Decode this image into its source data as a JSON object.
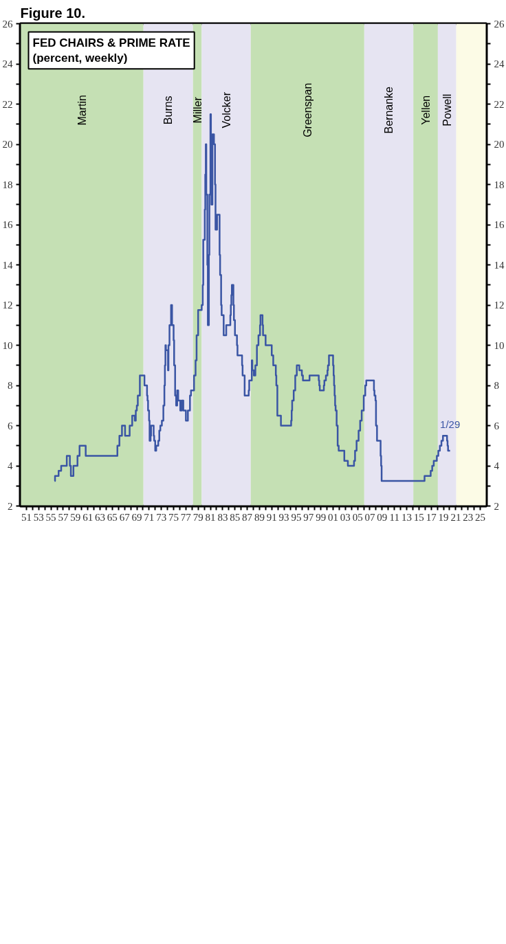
{
  "chart_data": {
    "type": "step",
    "title": "FED CHAIRS & PRIME RATE",
    "subtitle": "(percent, weekly)",
    "annotations": [
      "Figure 10.",
      {
        "text": "1/29",
        "x": "2020-01-29",
        "y": 4.75
      }
    ],
    "xlim": [
      "1950",
      "2026"
    ],
    "xticks": [
      {
        "value": "1951",
        "label": "51"
      },
      {
        "value": "1952",
        "label": null
      },
      {
        "value": "1953",
        "label": "53"
      },
      {
        "value": "1954",
        "label": null
      },
      {
        "value": "1955",
        "label": "55"
      },
      {
        "value": "1956",
        "label": null
      },
      {
        "value": "1957",
        "label": "57"
      },
      {
        "value": "1958",
        "label": null
      },
      {
        "value": "1959",
        "label": "59"
      },
      {
        "value": "1960",
        "label": null
      },
      {
        "value": "1961",
        "label": "61"
      },
      {
        "value": "1962",
        "label": null
      },
      {
        "value": "1963",
        "label": "63"
      },
      {
        "value": "1964",
        "label": null
      },
      {
        "value": "1965",
        "label": "65"
      },
      {
        "value": "1966",
        "label": null
      },
      {
        "value": "1967",
        "label": "67"
      },
      {
        "value": "1968",
        "label": null
      },
      {
        "value": "1969",
        "label": "69"
      },
      {
        "value": "1970",
        "label": null
      },
      {
        "value": "1971",
        "label": "71"
      },
      {
        "value": "1972",
        "label": null
      },
      {
        "value": "1973",
        "label": "73"
      },
      {
        "value": "1974",
        "label": null
      },
      {
        "value": "1975",
        "label": "75"
      },
      {
        "value": "1976",
        "label": null
      },
      {
        "value": "1977",
        "label": "77"
      },
      {
        "value": "1978",
        "label": null
      },
      {
        "value": "1979",
        "label": "79"
      },
      {
        "value": "1980",
        "label": null
      },
      {
        "value": "1981",
        "label": "81"
      },
      {
        "value": "1982",
        "label": null
      },
      {
        "value": "1983",
        "label": "83"
      },
      {
        "value": "1984",
        "label": null
      },
      {
        "value": "1985",
        "label": "85"
      },
      {
        "value": "1986",
        "label": null
      },
      {
        "value": "1987",
        "label": "87"
      },
      {
        "value": "1988",
        "label": null
      },
      {
        "value": "1989",
        "label": "89"
      },
      {
        "value": "1990",
        "label": null
      },
      {
        "value": "1991",
        "label": "91"
      },
      {
        "value": "1992",
        "label": null
      },
      {
        "value": "1993",
        "label": "93"
      },
      {
        "value": "1994",
        "label": null
      },
      {
        "value": "1995",
        "label": "95"
      },
      {
        "value": "1996",
        "label": null
      },
      {
        "value": "1997",
        "label": "97"
      },
      {
        "value": "1998",
        "label": null
      },
      {
        "value": "1999",
        "label": "99"
      },
      {
        "value": "2000",
        "label": null
      },
      {
        "value": "2001",
        "label": "01"
      },
      {
        "value": "2002",
        "label": null
      },
      {
        "value": "2003",
        "label": "03"
      },
      {
        "value": "2004",
        "label": null
      },
      {
        "value": "2005",
        "label": "05"
      },
      {
        "value": "2006",
        "label": null
      },
      {
        "value": "2007",
        "label": "07"
      },
      {
        "value": "2008",
        "label": null
      },
      {
        "value": "2009",
        "label": "09"
      },
      {
        "value": "2010",
        "label": null
      },
      {
        "value": "2011",
        "label": "11"
      },
      {
        "value": "2012",
        "label": null
      },
      {
        "value": "2013",
        "label": "13"
      },
      {
        "value": "2014",
        "label": null
      },
      {
        "value": "2015",
        "label": "15"
      },
      {
        "value": "2016",
        "label": null
      },
      {
        "value": "2017",
        "label": "17"
      },
      {
        "value": "2018",
        "label": null
      },
      {
        "value": "2019",
        "label": "19"
      },
      {
        "value": "2020",
        "label": null
      },
      {
        "value": "2021",
        "label": "21"
      },
      {
        "value": "2022",
        "label": null
      },
      {
        "value": "2023",
        "label": "23"
      },
      {
        "value": "2024",
        "label": null
      },
      {
        "value": "2025",
        "label": "25"
      }
    ],
    "ylim": [
      2,
      26
    ],
    "yticks": [
      2,
      {
        "value": 3,
        "label": null
      },
      4,
      {
        "value": 5,
        "label": null
      },
      6,
      {
        "value": 7,
        "label": null
      },
      8,
      {
        "value": 9,
        "label": null
      },
      10,
      {
        "value": 11,
        "label": null
      },
      12,
      {
        "value": 13,
        "label": null
      },
      14,
      {
        "value": 15,
        "label": null
      },
      16,
      {
        "value": 17,
        "label": null
      },
      18,
      {
        "value": 19,
        "label": null
      },
      20,
      {
        "value": 21,
        "label": null
      },
      22,
      {
        "value": 23,
        "label": null
      },
      24,
      {
        "value": 25,
        "label": null
      },
      26
    ],
    "y2lim": [
      2,
      26
    ],
    "y2ticks": [
      2,
      {
        "value": 3,
        "label": null
      },
      4,
      {
        "value": 5,
        "label": null
      },
      6,
      {
        "value": 7,
        "label": null
      },
      8,
      {
        "value": 9,
        "label": null
      },
      10,
      {
        "value": 11,
        "label": null
      },
      12,
      {
        "value": 13,
        "label": null
      },
      14,
      {
        "value": 15,
        "label": null
      },
      16,
      {
        "value": 17,
        "label": null
      },
      18,
      {
        "value": 19,
        "label": null
      },
      20,
      {
        "value": 21,
        "label": null
      },
      22,
      {
        "value": 23,
        "label": null
      },
      24,
      {
        "value": 25,
        "label": null
      },
      26
    ],
    "grid": false,
    "bands": [
      {
        "axis": "x",
        "from": "1950-01",
        "to": "1970-02",
        "label": "Martin",
        "color": "#c5e0b4"
      },
      {
        "axis": "x",
        "from": "1970-02",
        "to": "1978-03",
        "label": "Burns",
        "color": "#e6e4f2"
      },
      {
        "axis": "x",
        "from": "1978-03",
        "to": "1979-08",
        "label": "Miller",
        "color": "#c5e0b4"
      },
      {
        "axis": "x",
        "from": "1979-08",
        "to": "1987-08",
        "label": "Volcker",
        "color": "#e6e4f2"
      },
      {
        "axis": "x",
        "from": "1987-08",
        "to": "2006-02",
        "label": "Greenspan",
        "color": "#c5e0b4"
      },
      {
        "axis": "x",
        "from": "2006-02",
        "to": "2014-02",
        "label": "Bernanke",
        "color": "#e6e4f2"
      },
      {
        "axis": "x",
        "from": "2014-02",
        "to": "2018-02",
        "label": "Yellen",
        "color": "#c5e0b4"
      },
      {
        "axis": "x",
        "from": "2018-02",
        "to": "2021-02",
        "label": "Powell",
        "color": "#e6e4f2"
      },
      {
        "axis": "x",
        "from": "2021-02",
        "to": "2026-01",
        "label": null,
        "color": "#fcfbe6"
      }
    ],
    "series": [
      {
        "color": "#3a55a4",
        "x": [
          "1955-08",
          "1955-09",
          "1956-04",
          "1956-09",
          "1957-08",
          "1958-02",
          "1958-04",
          "1958-09",
          "1959-05",
          "1959-09",
          "1960-09",
          "1965-11",
          "1966-03",
          "1966-08",
          "1967-02",
          "1967-11",
          "1968-04",
          "1968-09",
          "1968-11",
          "1969-01",
          "1969-03",
          "1969-07",
          "1970-04",
          "1970-09",
          "1970-10",
          "1970-11",
          "1971-01",
          "1971-02",
          "1971-04",
          "1971-05",
          "1971-10",
          "1971-11",
          "1972-01",
          "1972-03",
          "1972-07",
          "1972-09",
          "1972-11",
          "1973-02",
          "1973-05",
          "1973-07",
          "1973-08",
          "1973-09",
          "1973-10",
          "1974-02",
          "1974-03",
          "1974-05",
          "1974-08",
          "1974-10",
          "1975-01",
          "1975-02",
          "1975-04",
          "1975-06",
          "1975-08",
          "1975-10",
          "1976-02",
          "1976-05",
          "1976-08",
          "1977-01",
          "1977-05",
          "1977-09",
          "1977-11",
          "1978-05",
          "1978-08",
          "1978-10",
          "1979-01",
          "1979-08",
          "1979-10",
          "1979-11",
          "1980-02",
          "1980-03",
          "1980-04",
          "1980-05",
          "1980-07",
          "1980-08",
          "1980-10",
          "1980-11",
          "1981-01",
          "1981-02",
          "1981-03",
          "1981-05",
          "1981-08",
          "1981-10",
          "1981-11",
          "1982-02",
          "1982-07",
          "1982-08",
          "1982-10",
          "1982-11",
          "1983-03",
          "1983-08",
          "1984-04",
          "1984-05",
          "1984-06",
          "1984-07",
          "1984-10",
          "1984-11",
          "1985-01",
          "1985-05",
          "1985-06",
          "1986-03",
          "1986-04",
          "1986-08",
          "1987-04",
          "1987-05",
          "1987-10",
          "1987-11",
          "1988-02",
          "1988-05",
          "1988-08",
          "1988-11",
          "1989-02",
          "1989-03",
          "1989-07",
          "1989-08",
          "1990-01",
          "1991-01",
          "1991-04",
          "1991-09",
          "1991-10",
          "1991-12",
          "1992-07",
          "1994-03",
          "1994-04",
          "1994-05",
          "1994-08",
          "1994-11",
          "1995-02",
          "1995-07",
          "1995-12",
          "1996-02",
          "1997-03",
          "1998-09",
          "1998-10",
          "1998-11",
          "1999-07",
          "1999-08",
          "1999-11",
          "2000-02",
          "2000-03",
          "2000-05",
          "2001-01",
          "2001-02",
          "2001-03",
          "2001-04",
          "2001-05",
          "2001-06",
          "2001-08",
          "2001-10",
          "2001-12",
          "2002-11",
          "2003-06",
          "2004-06",
          "2004-08",
          "2004-11",
          "2005-03",
          "2005-06",
          "2005-09",
          "2006-01",
          "2006-04",
          "2006-06",
          "2007-09",
          "2007-10",
          "2007-12",
          "2008-01",
          "2008-03",
          "2008-10",
          "2008-11",
          "2008-12",
          "2015-12",
          "2016-12",
          "2017-03",
          "2017-06",
          "2017-12",
          "2018-03",
          "2018-06",
          "2018-09",
          "2018-12",
          "2019-08",
          "2019-09",
          "2019-10",
          "2020-01-29"
        ],
        "values": [
          3.25,
          3.5,
          3.75,
          4.0,
          4.5,
          4.0,
          3.5,
          4.0,
          4.5,
          5.0,
          4.5,
          5.0,
          5.5,
          6.0,
          5.5,
          6.0,
          6.5,
          6.25,
          6.75,
          7.0,
          7.5,
          8.5,
          8.0,
          7.5,
          7.25,
          6.75,
          6.25,
          5.25,
          5.5,
          6.0,
          5.5,
          5.25,
          4.75,
          5.0,
          5.25,
          5.75,
          6.0,
          6.25,
          7.0,
          8.0,
          9.0,
          10.0,
          9.75,
          8.75,
          10.0,
          11.0,
          12.0,
          11.0,
          10.25,
          9.0,
          7.5,
          7.0,
          7.75,
          7.25,
          6.75,
          7.25,
          6.75,
          6.25,
          6.75,
          7.5,
          7.75,
          8.5,
          9.25,
          10.5,
          11.75,
          12.0,
          13.0,
          15.25,
          16.75,
          18.5,
          20.0,
          17.5,
          14.0,
          11.0,
          14.5,
          17.5,
          21.5,
          20.0,
          17.0,
          20.5,
          20.0,
          18.0,
          15.75,
          16.5,
          14.5,
          13.5,
          12.0,
          11.5,
          10.5,
          11.0,
          11.5,
          12.0,
          12.5,
          13.0,
          12.0,
          11.25,
          10.5,
          10.0,
          9.5,
          9.0,
          8.5,
          7.5,
          7.75,
          8.25,
          9.25,
          8.75,
          8.5,
          9.0,
          10.0,
          10.5,
          11.0,
          11.5,
          11.0,
          10.5,
          10.0,
          9.5,
          9.0,
          8.5,
          8.0,
          6.5,
          6.0,
          6.25,
          6.75,
          7.25,
          7.75,
          8.5,
          9.0,
          8.75,
          8.5,
          8.25,
          8.5,
          8.25,
          8.0,
          7.75,
          8.0,
          8.25,
          8.5,
          8.75,
          9.0,
          9.5,
          9.0,
          8.5,
          8.0,
          7.5,
          7.0,
          6.75,
          6.0,
          5.0,
          4.75,
          4.25,
          4.0,
          4.25,
          4.75,
          5.25,
          5.75,
          6.25,
          6.75,
          7.5,
          8.0,
          8.25,
          7.75,
          7.5,
          7.25,
          6.0,
          5.25,
          4.5,
          4.0,
          3.25,
          3.5,
          3.75,
          4.0,
          4.25,
          4.5,
          4.75,
          5.0,
          5.25,
          5.5,
          5.25,
          5.0,
          4.75,
          4.75
        ]
      }
    ]
  }
}
